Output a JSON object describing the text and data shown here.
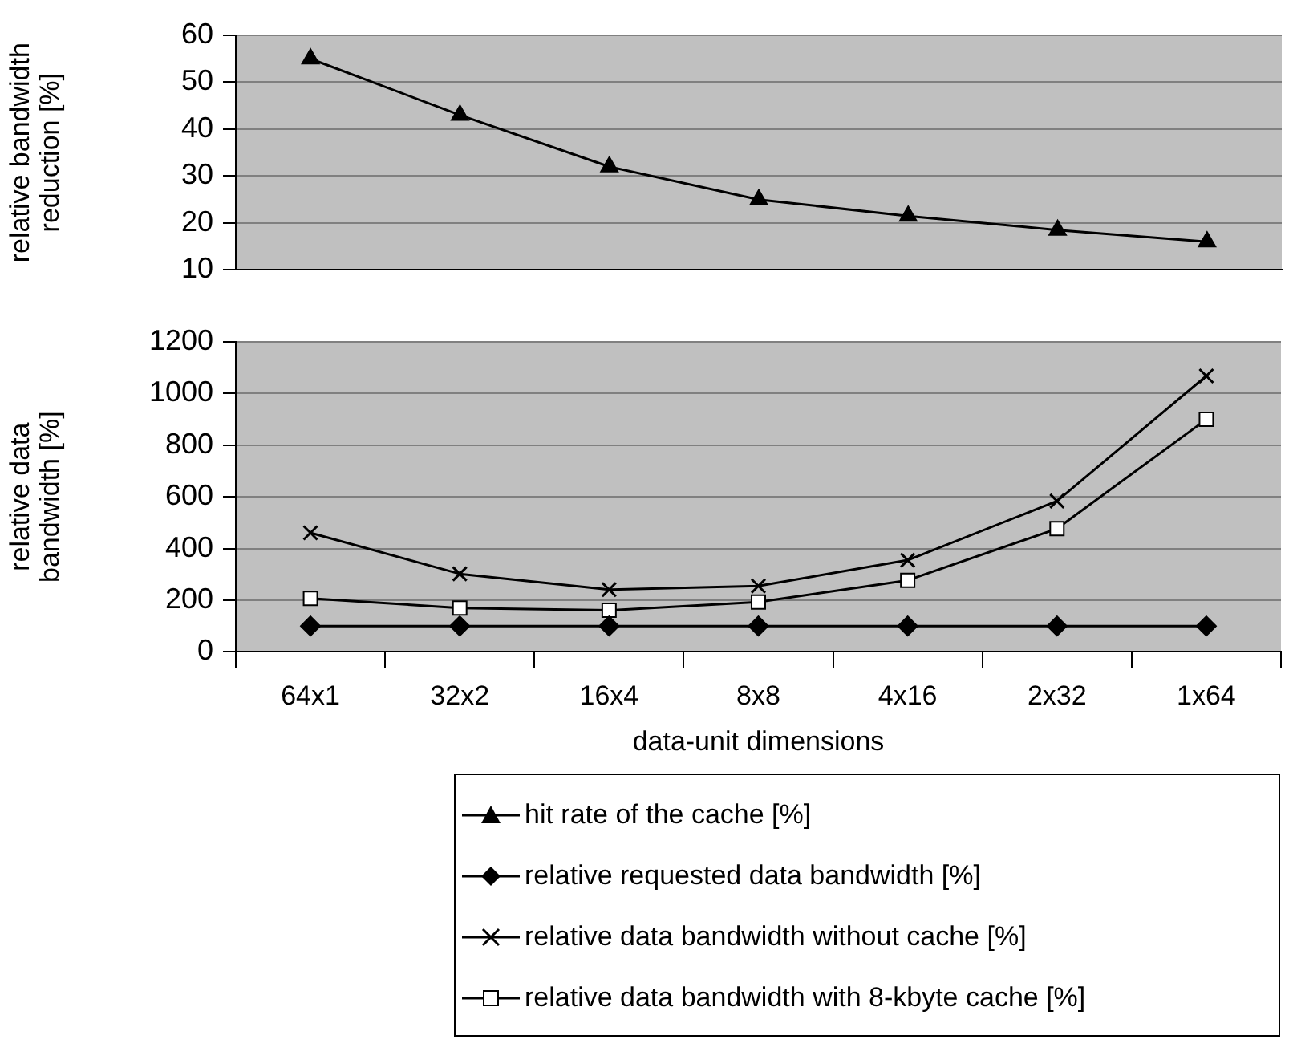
{
  "chart_data": [
    {
      "type": "line",
      "ylabel": "relative bandwidth reduction [%]",
      "categories": [
        null,
        null,
        null,
        null,
        null,
        null,
        null
      ],
      "ylim": [
        10,
        60
      ],
      "yticks": [
        10,
        20,
        30,
        40,
        50,
        60
      ],
      "grid": "y",
      "tick_labels": "y",
      "legend": "bottom",
      "series": [
        {
          "name": "hit rate of the cache [%]",
          "color": "#000000",
          "marker": "triangle",
          "values": [
            55,
            43,
            32,
            25,
            21.5,
            18.5,
            16
          ]
        }
      ]
    },
    {
      "type": "line",
      "ylabel": "relative data bandwidth [%]",
      "xlabel": "data-unit dimensions",
      "categories": [
        "64x1",
        "32x2",
        "16x4",
        "8x8",
        "4x16",
        "2x32",
        "1x64"
      ],
      "ylim": [
        0,
        1200
      ],
      "yticks": [
        0,
        200,
        400,
        600,
        800,
        1000,
        1200
      ],
      "grid": "y",
      "legend": "bottom",
      "series": [
        {
          "name": "relative requested data bandwidth [%]",
          "color": "#000000",
          "marker": "diamond",
          "values": [
            100,
            100,
            100,
            100,
            100,
            100,
            100
          ]
        },
        {
          "name": "relative data bandwidth without cache [%]",
          "color": "#000000",
          "marker": "cross",
          "values": [
            461,
            302,
            241,
            255,
            355,
            584,
            1068
          ]
        },
        {
          "name": "relative data bandwidth with 8-kbyte cache [%]",
          "color": "#000000",
          "marker": "square",
          "values": [
            207,
            170,
            161,
            193,
            277,
            477,
            900
          ]
        }
      ]
    }
  ]
}
